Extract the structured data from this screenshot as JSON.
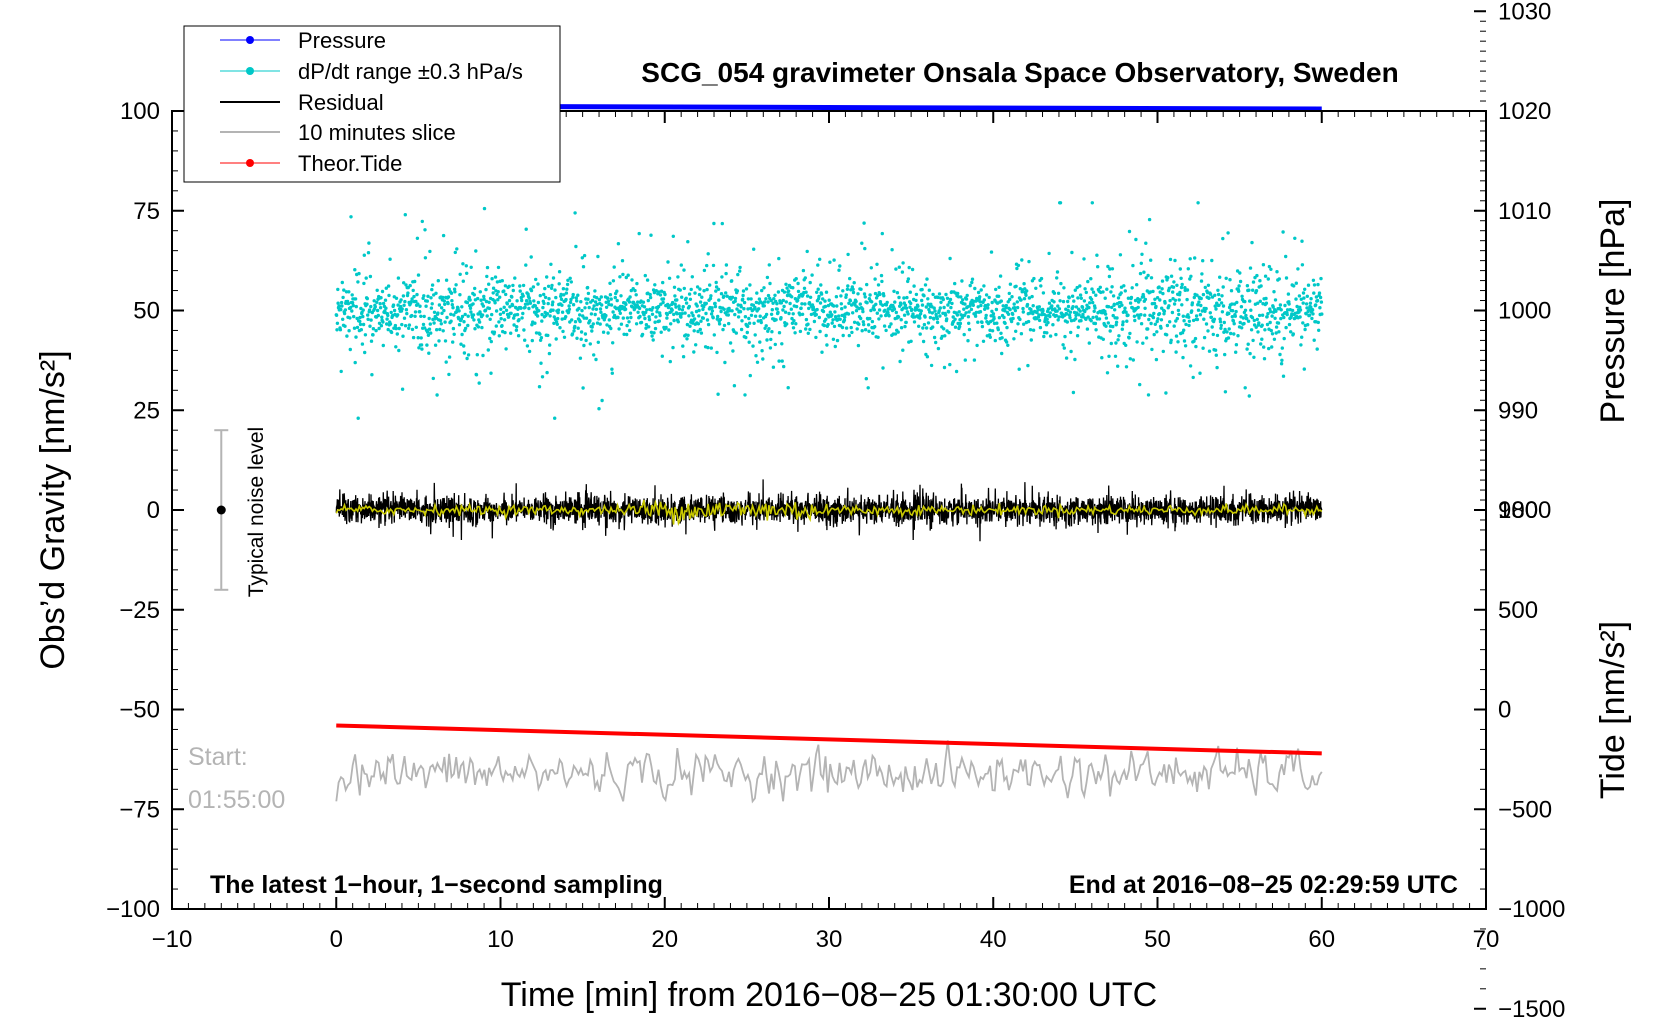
{
  "chart_data": {
    "type": "line",
    "title": "SCG_054 gravimeter Onsala Space Observatory, Sweden",
    "xlabel": "Time [min] from 2016−08−25 01:30:00 UTC",
    "xlim": [
      -10,
      70
    ],
    "xticks": [
      "−10",
      "0",
      "10",
      "20",
      "30",
      "40",
      "50",
      "60",
      "70"
    ],
    "left_axis": {
      "label": "Obs’d Gravity [nm/s²]",
      "ylim": [
        -100,
        100
      ],
      "ticks": [
        "100",
        "75",
        "50",
        "25",
        "0",
        "−25",
        "−50",
        "−75",
        "−100"
      ]
    },
    "pressure_axis": {
      "label": "Pressure [hPa]",
      "ticks": [
        "1030",
        "1020",
        "1010",
        "1000",
        "990",
        "980"
      ]
    },
    "tide_axis": {
      "label": "Tide [nm/s²]",
      "ticks": [
        "1000",
        "500",
        "0",
        "−500",
        "−1000",
        "−1500"
      ]
    },
    "series": [
      {
        "name": "Pressure",
        "color": "#0000ff",
        "x": [
          0,
          60
        ],
        "y": [
          1020.5,
          1020.2
        ],
        "axis": "pressure"
      },
      {
        "name": "dP/dt range ±0.3 hPa/s",
        "color": "#00c8c8",
        "x_range": [
          0,
          60
        ],
        "center": 50,
        "spread": 25,
        "axis": "gravity"
      },
      {
        "name": "Residual",
        "color": "#000000",
        "x_range": [
          0,
          60
        ],
        "center": 0,
        "spread": 8,
        "axis": "gravity"
      },
      {
        "name": "10 minutes slice",
        "color": "#b4b4b4",
        "x_range": [
          0,
          60
        ],
        "center": -66,
        "spread": 7,
        "axis": "gravity"
      },
      {
        "name": "Theor.Tide",
        "color": "#ff0000",
        "x": [
          0,
          60
        ],
        "y": [
          -54,
          -61
        ],
        "axis": "gravity"
      }
    ],
    "smoothed_residual_color": "#c8c800",
    "noise_level": {
      "label": "Typical noise level",
      "x": -7,
      "center": 0,
      "range": [
        -20,
        20
      ]
    },
    "annotations": {
      "start_label": "Start:",
      "start_time": "01:55:00",
      "note_left": "The latest 1−hour, 1−second sampling",
      "note_right": "End at 2016−08−25 02:29:59 UTC"
    },
    "legend_position": "top-left"
  }
}
